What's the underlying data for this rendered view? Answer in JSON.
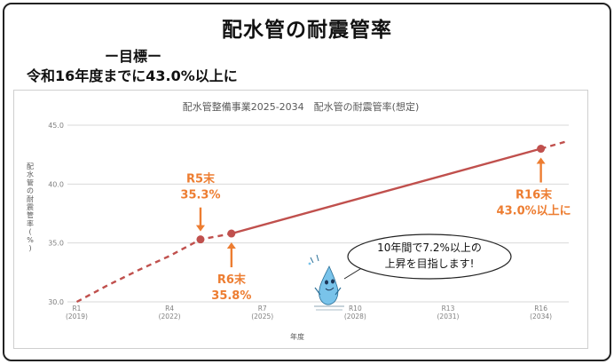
{
  "page": {
    "title": "配水管の耐震管率",
    "goal_label": "ー目標ー",
    "goal_text": "令和16年度までに43.0%以上に"
  },
  "colors": {
    "line": "#c0504d",
    "annotation": "#ed7d31",
    "grid": "#d9d9d9",
    "axis_text": "#808080"
  },
  "callout": {
    "line1": "10年間で7.2%以上の",
    "line2": "上昇を目指します!"
  },
  "mascot": {
    "icon": "water-drop-mascot-icon"
  },
  "chart_data": {
    "type": "line",
    "title": "配水管整備事業2025-2034　配水管の耐震管率(想定)",
    "xlabel": "年度",
    "ylabel": "配水管の耐震管率(%)",
    "x_ticks": [
      {
        "value": 0,
        "label1": "R1",
        "label2": "(2019)"
      },
      {
        "value": 3,
        "label1": "R4",
        "label2": "(2022)"
      },
      {
        "value": 6,
        "label1": "R7",
        "label2": "(2025)"
      },
      {
        "value": 9,
        "label1": "R10",
        "label2": "(2028)"
      },
      {
        "value": 12,
        "label1": "R13",
        "label2": "(2031)"
      },
      {
        "value": 15,
        "label1": "R16",
        "label2": "(2034)"
      }
    ],
    "xlim": [
      -0.3,
      15.9
    ],
    "ylim": [
      30,
      45
    ],
    "y_ticks": [
      "30.0",
      "35.0",
      "40.0",
      "45.0"
    ],
    "legend": "none",
    "grid": true,
    "projection_before": {
      "style": "dashed",
      "points": [
        [
          0,
          30.0
        ],
        [
          1,
          31.4
        ],
        [
          2,
          32.7
        ],
        [
          3,
          33.9
        ],
        [
          4,
          35.3
        ],
        [
          5,
          35.8
        ]
      ]
    },
    "plan": {
      "style": "solid",
      "points": [
        [
          5,
          35.8
        ],
        [
          15,
          43.0
        ]
      ]
    },
    "projection_after": {
      "style": "dashed",
      "points": [
        [
          15,
          43.0
        ],
        [
          15.8,
          43.6
        ]
      ]
    },
    "markers": [
      {
        "x": 4,
        "y": 35.3,
        "label1": "R5末",
        "label2": "35.3%",
        "arrow": "down"
      },
      {
        "x": 5,
        "y": 35.8,
        "label1": "R6末",
        "label2": "35.8%",
        "arrow": "up"
      },
      {
        "x": 15,
        "y": 43.0,
        "label1": "R16末",
        "label2": "43.0%以上に",
        "arrow": "up"
      }
    ]
  }
}
